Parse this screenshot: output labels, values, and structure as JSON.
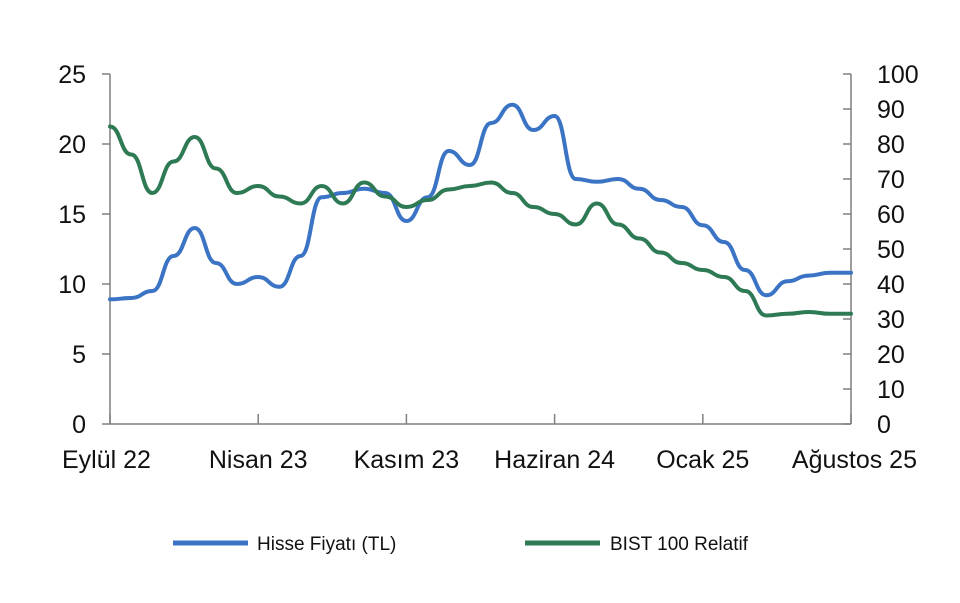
{
  "chart_data": {
    "type": "line",
    "x_categories": [
      "Eylül 22",
      "Nisan 23",
      "Kasım 23",
      "Haziran 24",
      "Ocak 25",
      "Ağustos 25"
    ],
    "y_left": {
      "ticks": [
        "0",
        "5",
        "10",
        "15",
        "20",
        "25"
      ],
      "lim": [
        0,
        25
      ]
    },
    "y_right": {
      "ticks": [
        "0",
        "10",
        "20",
        "30",
        "40",
        "50",
        "60",
        "70",
        "80",
        "90",
        "100"
      ],
      "lim": [
        0,
        100
      ]
    },
    "grid": false,
    "legend_position": "bottom",
    "series": [
      {
        "name": "Hisse Fiyatı (TL)",
        "axis": "left",
        "color": "#3b74c4",
        "points": [
          [
            "Eylül 22",
            8.9
          ],
          [
            "Ekim 22",
            9.0
          ],
          [
            "Kasım 22",
            9.5
          ],
          [
            "Aralık 22",
            12.0
          ],
          [
            "Ocak 23",
            14.0
          ],
          [
            "Şubat 23",
            11.5
          ],
          [
            "Mart 23",
            10.0
          ],
          [
            "Nisan 23",
            10.5
          ],
          [
            "Mayıs 23",
            9.8
          ],
          [
            "Haziran 23",
            12.0
          ],
          [
            "Temmuz 23",
            16.2
          ],
          [
            "Ağustos 23",
            16.5
          ],
          [
            "Eylül 23",
            16.8
          ],
          [
            "Ekim 23",
            16.5
          ],
          [
            "Kasım 23",
            14.5
          ],
          [
            "Aralık 23",
            16.2
          ],
          [
            "Ocak 24",
            19.5
          ],
          [
            "Şubat 24",
            18.5
          ],
          [
            "Mart 24",
            21.5
          ],
          [
            "Nisan 24",
            22.8
          ],
          [
            "Mayıs 24",
            21.0
          ],
          [
            "Haziran 24",
            22.0
          ],
          [
            "Temmuz 24",
            17.5
          ],
          [
            "Ağustos 24",
            17.3
          ],
          [
            "Eylül 24",
            17.5
          ],
          [
            "Ekim 24",
            16.8
          ],
          [
            "Kasım 24",
            16.0
          ],
          [
            "Aralık 24",
            15.5
          ],
          [
            "Ocak 25",
            14.2
          ],
          [
            "Şubat 25",
            13.0
          ],
          [
            "Mart 25",
            11.0
          ],
          [
            "Nisan 25",
            9.2
          ],
          [
            "Mayıs 25",
            10.2
          ],
          [
            "Haziran 25",
            10.6
          ],
          [
            "Temmuz 25",
            10.8
          ],
          [
            "Ağustos 25",
            10.8
          ]
        ]
      },
      {
        "name": "BIST 100 Relatif",
        "axis": "right",
        "color": "#2e7a54",
        "points": [
          [
            "Eylül 22",
            85
          ],
          [
            "Ekim 22",
            77
          ],
          [
            "Kasım 22",
            66
          ],
          [
            "Aralık 22",
            75
          ],
          [
            "Ocak 23",
            82
          ],
          [
            "Şubat 23",
            73
          ],
          [
            "Mart 23",
            66
          ],
          [
            "Nisan 23",
            68
          ],
          [
            "Mayıs 23",
            65
          ],
          [
            "Haziran 23",
            63
          ],
          [
            "Temmuz 23",
            68
          ],
          [
            "Ağustos 23",
            63
          ],
          [
            "Eylül 23",
            69
          ],
          [
            "Ekim 23",
            65
          ],
          [
            "Kasım 23",
            62
          ],
          [
            "Aralık 23",
            64
          ],
          [
            "Ocak 24",
            67
          ],
          [
            "Şubat 24",
            68
          ],
          [
            "Mart 24",
            69
          ],
          [
            "Nisan 24",
            66
          ],
          [
            "Mayıs 24",
            62
          ],
          [
            "Haziran 24",
            60
          ],
          [
            "Temmuz 24",
            57
          ],
          [
            "Ağustos 24",
            63
          ],
          [
            "Eylül 24",
            57
          ],
          [
            "Ekim 24",
            53
          ],
          [
            "Kasım 24",
            49
          ],
          [
            "Aralık 24",
            46
          ],
          [
            "Ocak 25",
            44
          ],
          [
            "Şubat 25",
            42
          ],
          [
            "Mart 25",
            38
          ],
          [
            "Nisan 25",
            31
          ],
          [
            "Mayıs 25",
            31.5
          ],
          [
            "Haziran 25",
            32
          ],
          [
            "Temmuz 25",
            31.5
          ],
          [
            "Ağustos 25",
            31.5
          ]
        ]
      }
    ]
  }
}
